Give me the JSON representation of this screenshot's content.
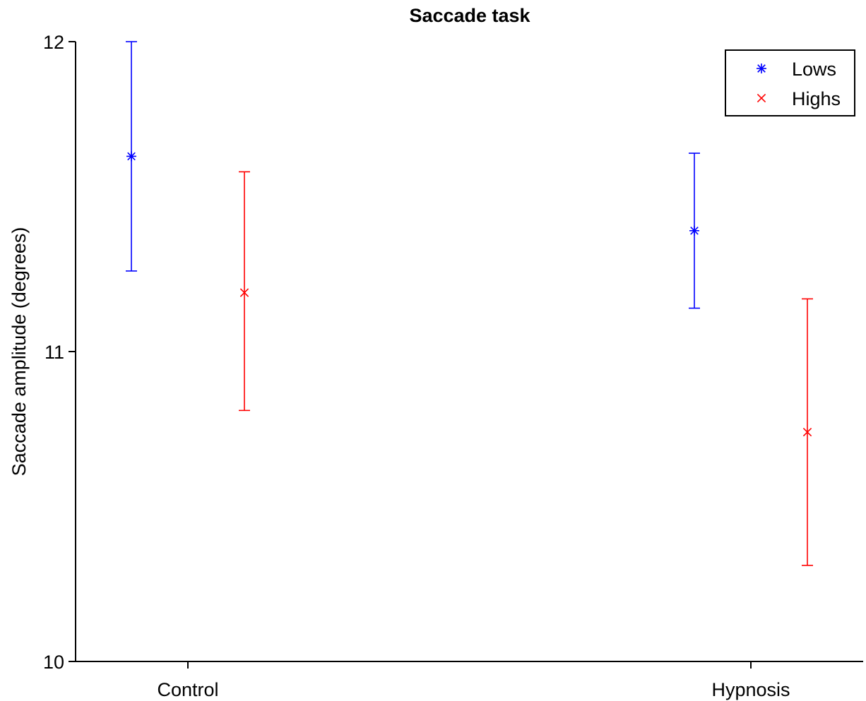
{
  "chart_data": {
    "type": "scatter",
    "title": "Saccade task",
    "xlabel": "",
    "ylabel": "Saccade amplitude (degrees)",
    "categories": [
      "Control",
      "Hypnosis"
    ],
    "ylim": [
      10,
      12
    ],
    "yticks": [
      10,
      11,
      12
    ],
    "grid": false,
    "legend_position": "top-right",
    "series": [
      {
        "name": "Lows",
        "marker": "asterisk",
        "color": "#0000ff",
        "points": [
          {
            "category": "Control",
            "y": 11.63,
            "lower": 11.26,
            "upper": 12.0
          },
          {
            "category": "Hypnosis",
            "y": 11.39,
            "lower": 11.14,
            "upper": 11.64
          }
        ]
      },
      {
        "name": "Highs",
        "marker": "x",
        "color": "#ff0000",
        "points": [
          {
            "category": "Control",
            "y": 11.19,
            "lower": 10.81,
            "upper": 11.58
          },
          {
            "category": "Hypnosis",
            "y": 10.74,
            "lower": 10.31,
            "upper": 11.17
          }
        ]
      }
    ]
  }
}
